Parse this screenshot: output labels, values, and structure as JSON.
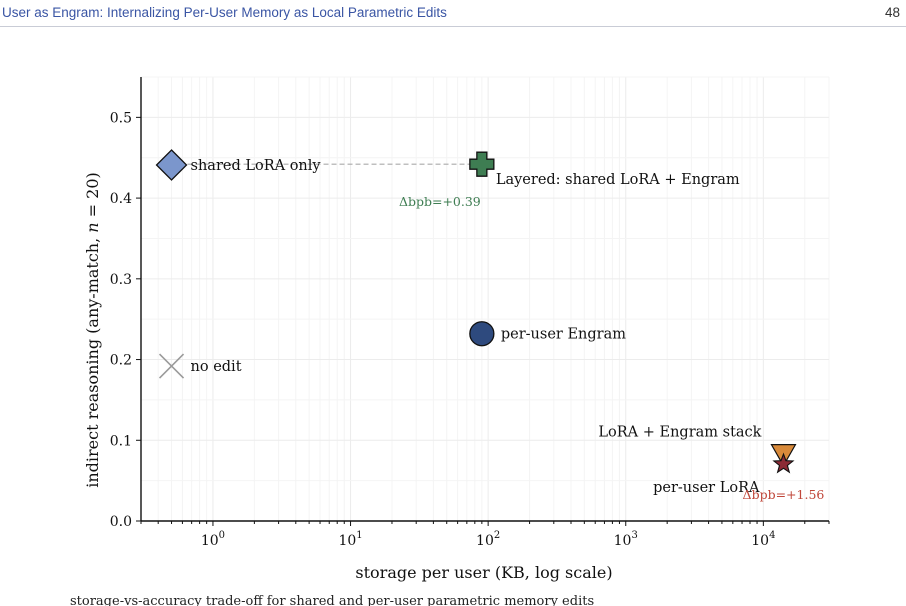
{
  "header": {
    "running_title": "User as Engram: Internalizing Per-User Memory as Local Parametric Edits",
    "page_number": "48"
  },
  "caption_fragment": "storage-vs-accuracy trade-off for shared and per-user parametric memory edits",
  "chart_data": {
    "type": "scatter",
    "xlabel": "storage per user (KB, log scale)",
    "ylabel": "indirect reasoning (any-match, n = 20)",
    "xscale": "log",
    "xlim": [
      0.3,
      30000
    ],
    "ylim": [
      0.0,
      0.55
    ],
    "grid": true,
    "x_ticks": [
      {
        "value": 1,
        "base": "10",
        "exp": "0"
      },
      {
        "value": 10,
        "base": "10",
        "exp": "1"
      },
      {
        "value": 100,
        "base": "10",
        "exp": "2"
      },
      {
        "value": 1000,
        "base": "10",
        "exp": "3"
      },
      {
        "value": 10000,
        "base": "10",
        "exp": "4"
      }
    ],
    "y_ticks": [
      "0.0",
      "0.1",
      "0.2",
      "0.3",
      "0.4",
      "0.5"
    ],
    "points": [
      {
        "label": "shared LoRA only",
        "x": 0.5,
        "y": 0.441,
        "marker": "diamond",
        "color": "#7b96cc",
        "label_pos": "right"
      },
      {
        "label": "Layered: shared LoRA + Engram",
        "x": 90,
        "y": 0.442,
        "marker": "plus",
        "color": "#3e7d52",
        "label_pos": "below-right"
      },
      {
        "label": "per-user Engram",
        "x": 90,
        "y": 0.232,
        "marker": "circle",
        "color": "#2e4a7e",
        "label_pos": "right"
      },
      {
        "label": "no edit",
        "x": 0.5,
        "y": 0.192,
        "marker": "x",
        "color": "#9a9a9a",
        "label_pos": "right"
      },
      {
        "label": "LoRA + Engram stack",
        "x": 14000,
        "y": 0.076,
        "marker": "triangle-down",
        "color": "#d98a3a",
        "label_pos": "above-left"
      },
      {
        "label": "per-user LoRA",
        "x": 14000,
        "y": 0.073,
        "marker": "star",
        "color": "#8c2a35",
        "label_pos": "below-left"
      }
    ],
    "reference_line": {
      "y": 0.442,
      "x_from": 0.5,
      "x_to": 90,
      "style": "dashed",
      "color": "#aaaaaa"
    },
    "annotations": [
      {
        "text": "Δbpb=+0.39",
        "x": 90,
        "y": 0.442,
        "color": "#3e7d52",
        "pos": "below-left"
      },
      {
        "text": "Δbpb=+1.56",
        "x": 14000,
        "y": 0.073,
        "color": "#c0473a",
        "pos": "below"
      }
    ]
  }
}
